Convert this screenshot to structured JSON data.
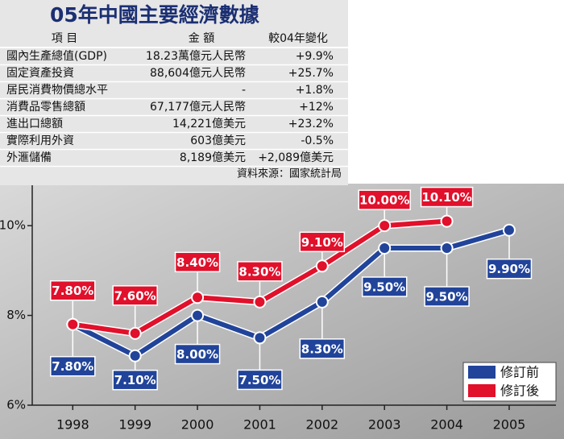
{
  "table": {
    "title": "05年中國主要經濟數據",
    "header": [
      "項 目",
      "金 額",
      "較04年變化"
    ],
    "rows": [
      [
        "國內生產總值(GDP)",
        "18.23萬億元人民幣",
        "+9.9%"
      ],
      [
        "固定資產投資",
        "88,604億元人民幣",
        "+25.7%"
      ],
      [
        "居民消費物價總水平",
        "-",
        "+1.8%"
      ],
      [
        "消費品零售總額",
        "67,177億元人民幣",
        "+12%"
      ],
      [
        "進出口總額",
        "14,221億美元",
        "+23.2%"
      ],
      [
        "實際利用外資",
        "603億美元",
        "-0.5%"
      ],
      [
        "外滙儲備",
        "8,189億美元",
        "+2,089億美元"
      ]
    ],
    "source": "資料來源：國家統計局"
  },
  "chart_data": {
    "type": "line",
    "x": [
      1998,
      1999,
      2000,
      2001,
      2002,
      2003,
      2004,
      2005
    ],
    "xlim": [
      1997.35,
      2005.75
    ],
    "xticks": [
      1998,
      1999,
      2000,
      2001,
      2002,
      2003,
      2004,
      2005
    ],
    "ylim": [
      6,
      10.9
    ],
    "yticks": [
      {
        "value": 6,
        "label": "6%"
      },
      {
        "value": 8,
        "label": "8%"
      },
      {
        "value": 10,
        "label": "10%"
      }
    ],
    "legend": "bottom-right",
    "series": [
      {
        "name": "修訂前",
        "color": "#21449a",
        "values": [
          7.8,
          7.1,
          8.0,
          7.5,
          8.3,
          9.5,
          9.5,
          9.9
        ],
        "value_labels": [
          "7.80%",
          "7.10%",
          "8.00%",
          "7.50%",
          "8.30%",
          "9.50%",
          "9.50%",
          "9.90%"
        ]
      },
      {
        "name": "修訂後",
        "color": "#e1102b",
        "values": [
          7.8,
          7.6,
          8.4,
          8.3,
          9.1,
          10.0,
          10.1,
          null
        ],
        "value_labels": [
          "7.80%",
          "7.60%",
          "8.40%",
          "8.30%",
          "9.10%",
          "10.00%",
          "10.10%",
          null
        ]
      }
    ]
  }
}
